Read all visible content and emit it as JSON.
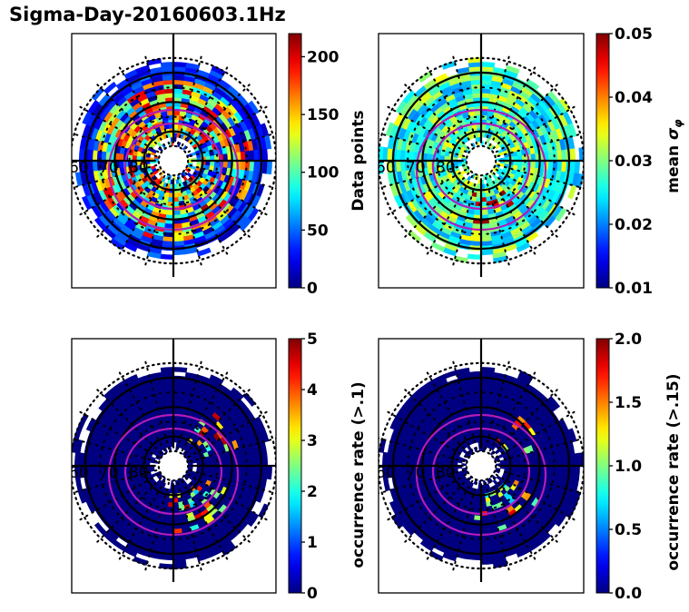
{
  "figure": {
    "title": "Sigma-Day-20160603.1Hz"
  },
  "chart_data": [
    {
      "type": "heatmap",
      "projection": "polar",
      "position": "top-left",
      "lat_labels": [
        "60",
        "70",
        "80"
      ],
      "lat_rings": [
        60,
        70,
        80
      ],
      "colormap": "jet",
      "colorbar": {
        "label": "Data points",
        "min": 0,
        "max": 220,
        "ticks": [
          0,
          50,
          100,
          150,
          200
        ]
      },
      "field_character": "dense, mixed 0-220 across all rings",
      "fill_profile": {
        "base": 0.45,
        "spread": 0.45,
        "sparse_hot": 0.0
      }
    },
    {
      "type": "heatmap",
      "projection": "polar",
      "position": "top-right",
      "lat_labels": [
        "60",
        "70",
        "80"
      ],
      "lat_rings": [
        60,
        70,
        80
      ],
      "colormap": "jet",
      "colorbar": {
        "label": "mean σ",
        "label_subscript": "φ",
        "min": 0.01,
        "max": 0.05,
        "ticks": [
          0.01,
          0.02,
          0.03,
          0.04,
          0.05
        ]
      },
      "field_character": "mostly 0.02-0.035, higher values on dusk/night side",
      "fill_profile": {
        "base": 0.45,
        "spread": 0.18,
        "sparse_hot": 0.04
      }
    },
    {
      "type": "heatmap",
      "projection": "polar",
      "position": "bottom-left",
      "lat_labels": [
        "60",
        "70",
        "80"
      ],
      "lat_rings": [
        60,
        70,
        80
      ],
      "colormap": "jet",
      "colorbar": {
        "label": "occurrence rate (>.1)",
        "min": 0,
        "max": 5,
        "ticks": [
          0,
          1,
          2,
          3,
          4,
          5
        ]
      },
      "field_character": "mostly 0, scattered higher values near auroral oval",
      "fill_profile": {
        "base": 0.0,
        "spread": 0.0,
        "sparse_hot": 0.05
      }
    },
    {
      "type": "heatmap",
      "projection": "polar",
      "position": "bottom-right",
      "lat_labels": [
        "60",
        "70",
        "80"
      ],
      "lat_rings": [
        60,
        70,
        80
      ],
      "colormap": "jet",
      "colorbar": {
        "label": "occurrence rate (>.15)",
        "min": 0.0,
        "max": 2.0,
        "ticks": [
          "0.0",
          "0.5",
          "1.0",
          "1.5",
          "2.0"
        ]
      },
      "field_character": "mostly 0, scattered high values near auroral oval",
      "fill_profile": {
        "base": 0.0,
        "spread": 0.0,
        "sparse_hot": 0.035
      }
    }
  ]
}
